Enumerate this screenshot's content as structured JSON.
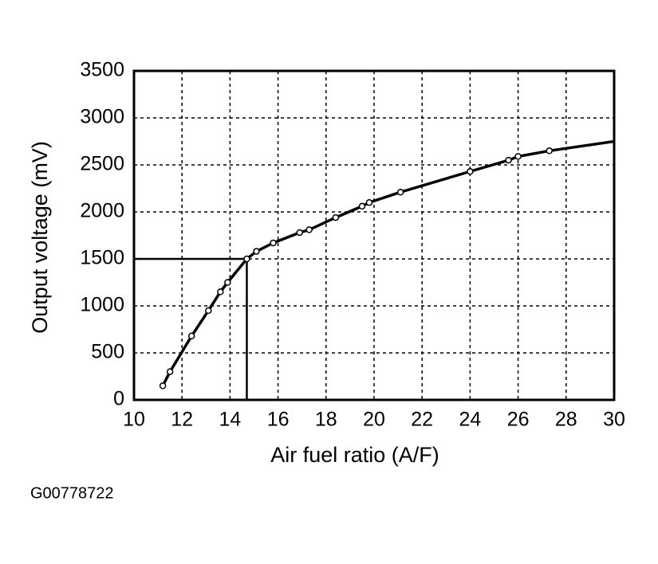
{
  "chart_data": {
    "type": "line",
    "xlabel": "Air fuel ratio (A/F)",
    "ylabel": "Output voltage (mV)",
    "caption": "G00778722",
    "x": [
      11.2,
      11.5,
      12.4,
      13.1,
      13.6,
      13.9,
      14.7,
      15.1,
      15.8,
      16.9,
      17.3,
      18.4,
      19.5,
      19.8,
      21.1,
      24,
      25.6,
      26,
      27.3,
      30
    ],
    "series": [
      {
        "color": "#000000",
        "values": [
          150,
          300,
          680,
          950,
          1150,
          1250,
          1500,
          1580,
          1670,
          1780,
          1810,
          1940,
          2060,
          2100,
          2210,
          2430,
          2550,
          2590,
          2650,
          2750
        ]
      }
    ],
    "reference": {
      "x": 14.7,
      "y": 1500
    },
    "xlim": [
      10,
      30
    ],
    "xticks": [
      10,
      12,
      14,
      16,
      18,
      20,
      22,
      24,
      26,
      28,
      30
    ],
    "ylim": [
      0,
      3500
    ],
    "yticks": [
      0,
      500,
      1000,
      1500,
      2000,
      2500,
      3000,
      3500
    ],
    "grid": true
  }
}
